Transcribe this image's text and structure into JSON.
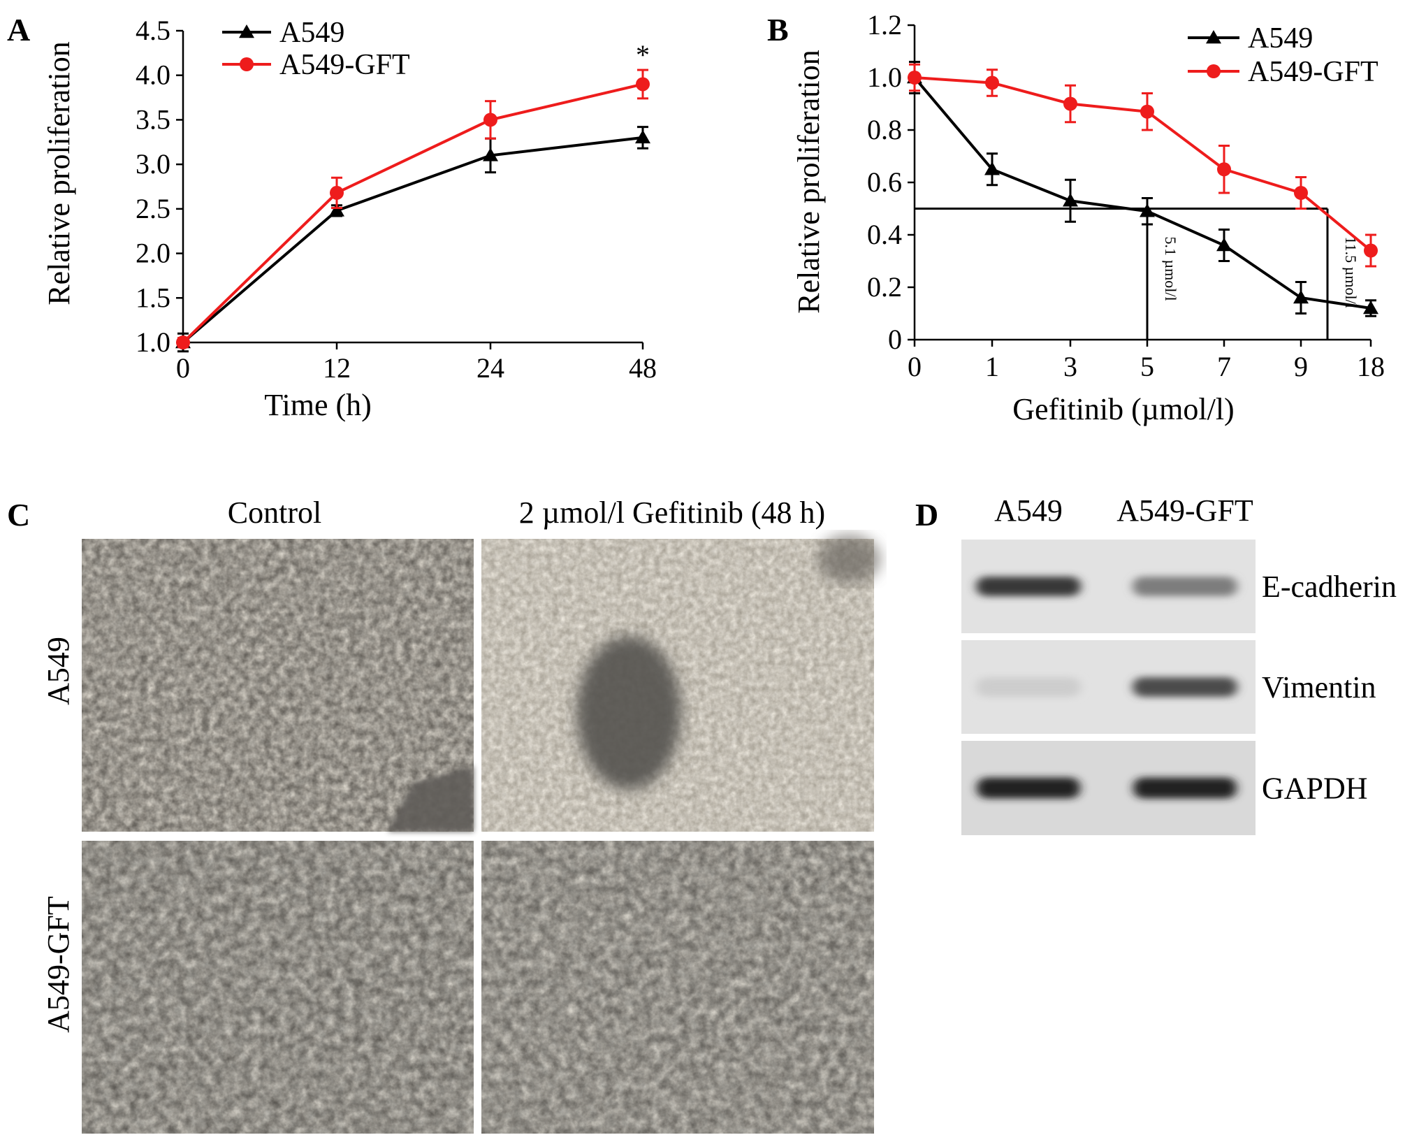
{
  "panels": {
    "A": {
      "letter": "A"
    },
    "B": {
      "letter": "B"
    },
    "C": {
      "letter": "C"
    },
    "D": {
      "letter": "D"
    }
  },
  "colors": {
    "a549": "#000000",
    "gft": "#ee1c1c"
  },
  "chart_data": [
    {
      "panel": "A",
      "type": "line",
      "title": "",
      "xlabel": "Time (h)",
      "ylabel": "Relative proliferation",
      "x": [
        0,
        12,
        24,
        48
      ],
      "x_tick_labels": [
        "0",
        "12",
        "24",
        "48"
      ],
      "ylim": [
        1.0,
        4.5
      ],
      "y_ticks": [
        1.0,
        1.5,
        2.0,
        2.5,
        3.0,
        3.5,
        4.0,
        4.5
      ],
      "y_tick_labels": [
        "1.0",
        "1.5",
        "2.0",
        "2.5",
        "3.0",
        "3.5",
        "4.0",
        "4.5"
      ],
      "legend_position": "top-left",
      "series": [
        {
          "name": "A549",
          "marker": "triangle",
          "color": "#000000",
          "values": [
            1.0,
            2.48,
            3.1,
            3.3
          ],
          "errors": [
            0.1,
            0.06,
            0.19,
            0.12
          ]
        },
        {
          "name": "A549-GFT",
          "marker": "circle",
          "color": "#ee1c1c",
          "values": [
            1.0,
            2.68,
            3.5,
            3.9
          ],
          "errors": [
            0.05,
            0.17,
            0.21,
            0.16
          ]
        }
      ],
      "annotations": [
        {
          "text": "*",
          "x": 48
        }
      ]
    },
    {
      "panel": "B",
      "type": "line",
      "title": "",
      "xlabel": "Gefitinib (µmol/l)",
      "ylabel": "Relative proliferation",
      "x": [
        0,
        1,
        3,
        5,
        7,
        9,
        18
      ],
      "x_tick_labels": [
        "0",
        "1",
        "3",
        "5",
        "7",
        "9",
        "18"
      ],
      "ylim": [
        0,
        1.2
      ],
      "y_ticks": [
        0,
        0.2,
        0.4,
        0.6,
        0.8,
        1.0,
        1.2
      ],
      "y_tick_labels": [
        "0",
        "0.2",
        "0.4",
        "0.6",
        "0.8",
        "1.0",
        "1.2"
      ],
      "legend_position": "top-right",
      "series": [
        {
          "name": "A549",
          "marker": "triangle",
          "color": "#000000",
          "values": [
            1.0,
            0.65,
            0.53,
            0.49,
            0.36,
            0.16,
            0.12
          ],
          "errors": [
            0.06,
            0.06,
            0.08,
            0.05,
            0.06,
            0.06,
            0.03
          ]
        },
        {
          "name": "A549-GFT",
          "marker": "circle",
          "color": "#ee1c1c",
          "values": [
            1.0,
            0.98,
            0.9,
            0.87,
            0.65,
            0.56,
            0.34
          ],
          "errors": [
            0.05,
            0.05,
            0.07,
            0.07,
            0.09,
            0.06,
            0.06
          ]
        }
      ],
      "reference_y": 0.5,
      "ic50_annotations": [
        {
          "text": "5.1 µmol/l",
          "x_index": 3
        },
        {
          "text": "11.5 µmol/l",
          "x_index": 5.38
        }
      ]
    }
  ],
  "micrographs": {
    "col_headers": [
      "Control",
      "2 µmol/l Gefitinib (48 h)"
    ],
    "row_labels": [
      "A549",
      "A549-GFT"
    ]
  },
  "western_blot": {
    "lane_labels": [
      "A549",
      "A549-GFT"
    ],
    "bands": [
      {
        "label": "E-cadherin",
        "intensity": [
          0.9,
          0.55
        ]
      },
      {
        "label": "Vimentin",
        "intensity": [
          0.15,
          0.8
        ]
      },
      {
        "label": "GAPDH",
        "intensity": [
          1.0,
          1.0
        ]
      }
    ]
  }
}
